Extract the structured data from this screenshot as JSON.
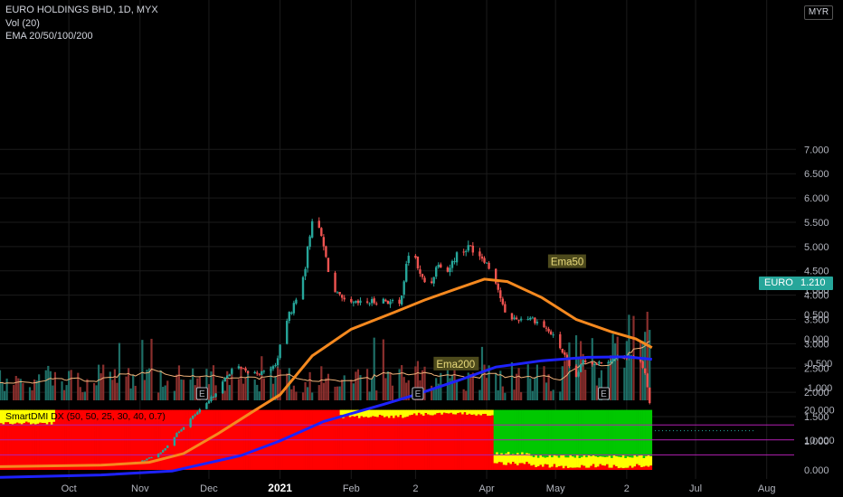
{
  "header": {
    "symbol_line": "EURO HOLDINGS BHD, 1D, MYX",
    "volume_line": "Vol (20)",
    "ema_line": "EMA 20/50/100/200",
    "currency_badge": "MYR"
  },
  "price_tag": {
    "label": "EURO",
    "value": "1.210"
  },
  "indicator_title": "SmartDMI DX (50, 50, 25, 30, 40, 0.7)",
  "colors": {
    "background": "#000000",
    "up_candle": "#26a69a",
    "down_candle": "#ef5350",
    "ema50": "#f5891f",
    "ema200": "#1e22ff",
    "volume_ma": "#f0b27a",
    "earnings_box": "#b2b5be",
    "ema_label_bg": "#4d4a1c",
    "ema_label_text": "#e8d97a",
    "band_red": "#ff0000",
    "band_yellow": "#ffff00",
    "band_green": "#00c800"
  },
  "chart_data": [
    {
      "type": "candlestick",
      "title": "EURO HOLDINGS BHD, 1D, MYX",
      "y_axis_ticks": [
        "1.000",
        "1.500",
        "2.000",
        "2.500",
        "3.000",
        "3.500",
        "4.000",
        "4.500",
        "5.000",
        "5.500",
        "6.000",
        "6.500",
        "7.000"
      ],
      "x_axis_labels": [
        "Oct",
        "Nov",
        "Dec",
        "2021",
        "Feb",
        "2",
        "Apr",
        "May",
        "2",
        "Jul",
        "Aug"
      ],
      "last_price": 1.21,
      "close_path": [
        {
          "date": "2020-09-01",
          "close": 0.47
        },
        {
          "date": "2020-10-01",
          "close": 0.49
        },
        {
          "date": "2020-10-20",
          "close": 0.52
        },
        {
          "date": "2020-11-01",
          "close": 0.57
        },
        {
          "date": "2020-11-10",
          "close": 0.75
        },
        {
          "date": "2020-11-18",
          "close": 1.2
        },
        {
          "date": "2020-11-24",
          "close": 1.5
        },
        {
          "date": "2020-11-30",
          "close": 1.75
        },
        {
          "date": "2020-12-07",
          "close": 2.2
        },
        {
          "date": "2020-12-12",
          "close": 2.55
        },
        {
          "date": "2020-12-18",
          "close": 2.4
        },
        {
          "date": "2020-12-24",
          "close": 2.4
        },
        {
          "date": "2020-12-30",
          "close": 2.55
        },
        {
          "date": "2021-01-04",
          "close": 3.5
        },
        {
          "date": "2021-01-08",
          "close": 3.9
        },
        {
          "date": "2021-01-12",
          "close": 4.6
        },
        {
          "date": "2021-01-15",
          "close": 5.6
        },
        {
          "date": "2021-01-19",
          "close": 5.2
        },
        {
          "date": "2021-01-24",
          "close": 4.1
        },
        {
          "date": "2021-01-30",
          "close": 3.8
        },
        {
          "date": "2021-02-08",
          "close": 3.85
        },
        {
          "date": "2021-02-15",
          "close": 3.9
        },
        {
          "date": "2021-02-22",
          "close": 3.8
        },
        {
          "date": "2021-02-27",
          "close": 5.1
        },
        {
          "date": "2021-03-03",
          "close": 4.4
        },
        {
          "date": "2021-03-07",
          "close": 4.15
        },
        {
          "date": "2021-03-11",
          "close": 4.7
        },
        {
          "date": "2021-03-15",
          "close": 4.5
        },
        {
          "date": "2021-03-19",
          "close": 4.85
        },
        {
          "date": "2021-03-25",
          "close": 5.0
        },
        {
          "date": "2021-03-31",
          "close": 4.75
        },
        {
          "date": "2021-04-05",
          "close": 4.3
        },
        {
          "date": "2021-04-09",
          "close": 3.6
        },
        {
          "date": "2021-04-14",
          "close": 3.5
        },
        {
          "date": "2021-04-20",
          "close": 3.55
        },
        {
          "date": "2021-04-26",
          "close": 3.35
        },
        {
          "date": "2021-05-01",
          "close": 3.1
        },
        {
          "date": "2021-05-06",
          "close": 2.65
        },
        {
          "date": "2021-05-09",
          "close": 2.2
        },
        {
          "date": "2021-05-13",
          "close": 2.65
        },
        {
          "date": "2021-05-18",
          "close": 2.6
        },
        {
          "date": "2021-05-23",
          "close": 2.65
        },
        {
          "date": "2021-05-28",
          "close": 2.7
        },
        {
          "date": "2021-06-02",
          "close": 2.75
        },
        {
          "date": "2021-06-07",
          "close": 2.6
        },
        {
          "date": "2021-06-09",
          "close": 2.4
        },
        {
          "date": "2021-06-11",
          "close": 1.78
        }
      ],
      "series": [
        {
          "name": "Ema50",
          "points": [
            {
              "date": "2020-09-01",
              "value": 0.47
            },
            {
              "date": "2020-10-15",
              "value": 0.5
            },
            {
              "date": "2020-11-05",
              "value": 0.56
            },
            {
              "date": "2020-11-20",
              "value": 0.74
            },
            {
              "date": "2020-12-05",
              "value": 1.15
            },
            {
              "date": "2020-12-20",
              "value": 1.6
            },
            {
              "date": "2021-01-01",
              "value": 1.95
            },
            {
              "date": "2021-01-15",
              "value": 2.75
            },
            {
              "date": "2021-02-01",
              "value": 3.3
            },
            {
              "date": "2021-02-20",
              "value": 3.65
            },
            {
              "date": "2021-03-05",
              "value": 3.9
            },
            {
              "date": "2021-03-20",
              "value": 4.15
            },
            {
              "date": "2021-03-31",
              "value": 4.33
            },
            {
              "date": "2021-04-10",
              "value": 4.28
            },
            {
              "date": "2021-04-25",
              "value": 3.95
            },
            {
              "date": "2021-05-10",
              "value": 3.5
            },
            {
              "date": "2021-05-25",
              "value": 3.25
            },
            {
              "date": "2021-06-05",
              "value": 3.1
            },
            {
              "date": "2021-06-12",
              "value": 2.92
            }
          ]
        },
        {
          "name": "Ema200",
          "points": [
            {
              "date": "2020-09-01",
              "value": 0.25
            },
            {
              "date": "2020-10-15",
              "value": 0.3
            },
            {
              "date": "2020-11-15",
              "value": 0.38
            },
            {
              "date": "2020-12-15",
              "value": 0.7
            },
            {
              "date": "2021-01-01",
              "value": 1.0
            },
            {
              "date": "2021-01-20",
              "value": 1.4
            },
            {
              "date": "2021-02-15",
              "value": 1.75
            },
            {
              "date": "2021-03-01",
              "value": 1.95
            },
            {
              "date": "2021-03-20",
              "value": 2.25
            },
            {
              "date": "2021-04-05",
              "value": 2.52
            },
            {
              "date": "2021-04-25",
              "value": 2.65
            },
            {
              "date": "2021-05-15",
              "value": 2.72
            },
            {
              "date": "2021-06-01",
              "value": 2.73
            },
            {
              "date": "2021-06-12",
              "value": 2.68
            }
          ]
        }
      ]
    },
    {
      "type": "bar",
      "title": "Vol (20)",
      "earnings_marker_text": "E",
      "earnings_dates": [
        "2020-11-28",
        "2021-03-02",
        "2021-05-22"
      ]
    },
    {
      "type": "area",
      "title": "SmartDMI DX (50, 50, 25, 30, 40, 0.7)",
      "y_axis_ticks": [
        "0.000",
        "10.000",
        "20.000"
      ],
      "ylim": [
        0,
        20
      ],
      "zones": [
        {
          "start": "2020-09-01",
          "end": "2020-09-25",
          "top": "yellow",
          "yellow_from": 15.5
        },
        {
          "start": "2020-09-25",
          "end": "2021-01-27",
          "top": "red",
          "yellow_from": 20
        },
        {
          "start": "2021-01-27",
          "end": "2021-02-26",
          "top": "yellow",
          "yellow_from": 17.8
        },
        {
          "start": "2021-02-26",
          "end": "2021-04-04",
          "top": "yellow",
          "yellow_from": 18.6
        },
        {
          "start": "2021-04-04",
          "end": "2021-04-20",
          "top": "green",
          "yellow_from": 5.5
        },
        {
          "start": "2021-04-20",
          "end": "2021-06-12",
          "top": "green",
          "yellow_from": 4.5
        }
      ]
    }
  ]
}
